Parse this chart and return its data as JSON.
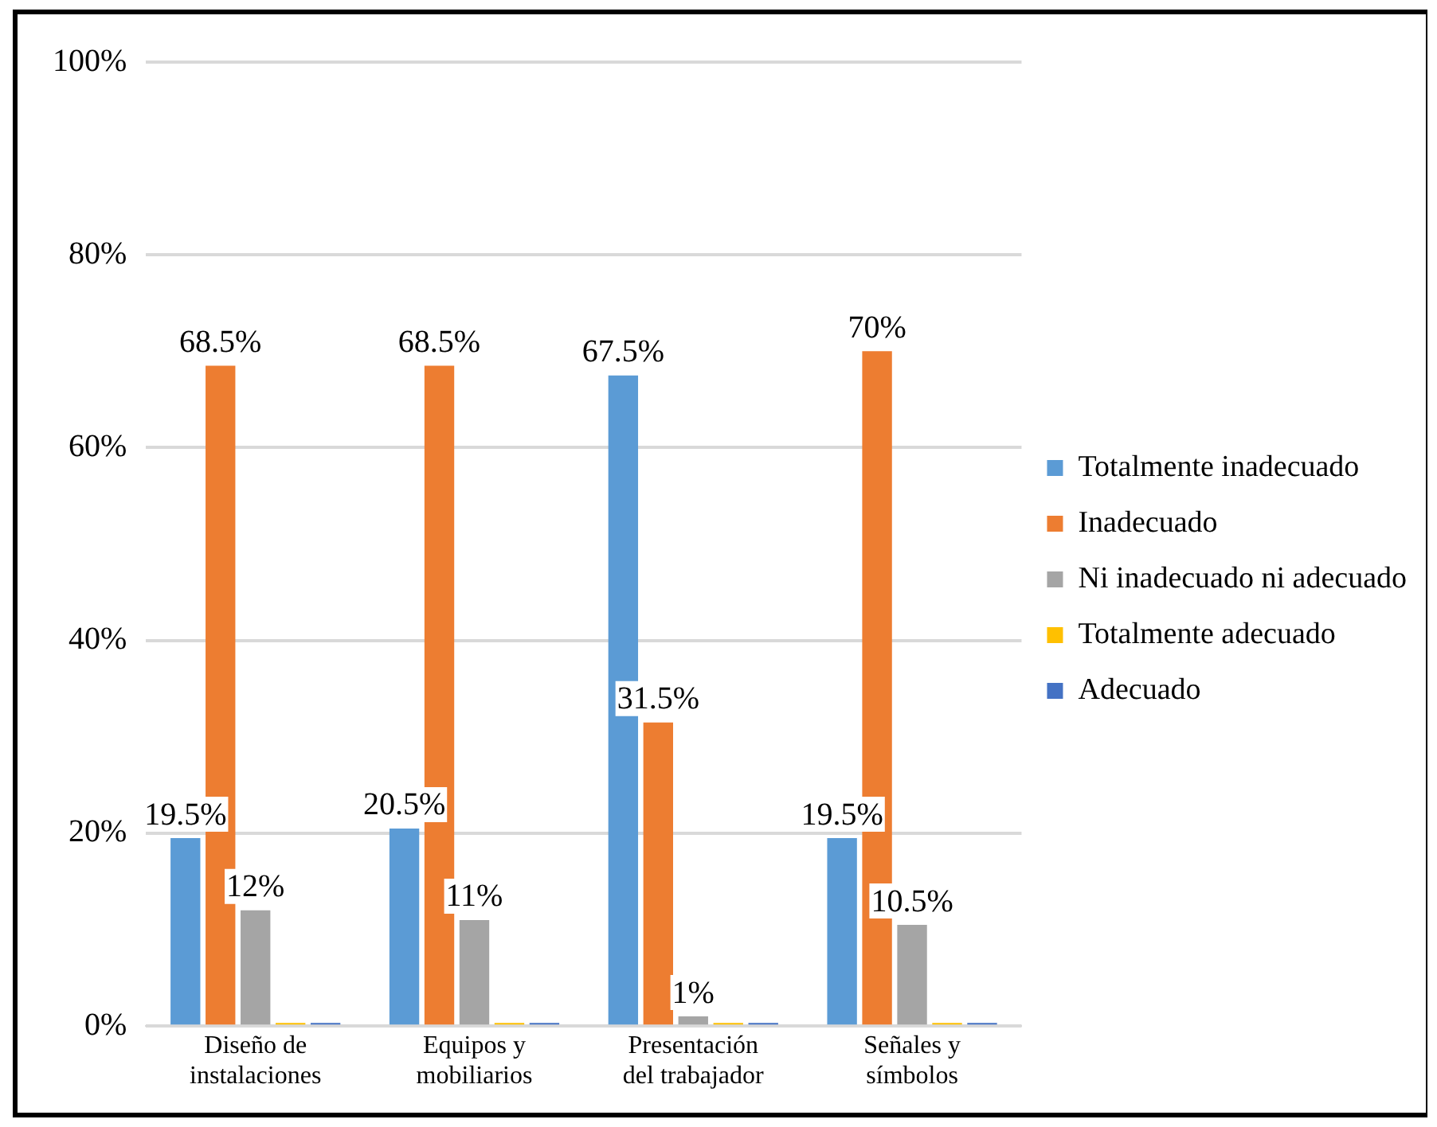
{
  "chart_data": {
    "type": "bar",
    "categories": [
      "Diseño de instalaciones",
      "Equipos y mobiliarios",
      "Presentación del trabajador",
      "Señales y símbolos"
    ],
    "series": [
      {
        "name": "Totalmente inadecuado",
        "color": "#5b9bd5",
        "values": [
          19.5,
          20.5,
          67.5,
          19.5
        ],
        "value_labels": [
          "19.5%",
          "20.5%",
          "67.5%",
          "19.5%"
        ]
      },
      {
        "name": "Inadecuado",
        "color": "#ed7d31",
        "values": [
          68.5,
          68.5,
          31.5,
          70
        ],
        "value_labels": [
          "68.5%",
          "68.5%",
          "31.5%",
          "70%"
        ]
      },
      {
        "name": "Ni inadecuado ni adecuado",
        "color": "#a5a5a5",
        "values": [
          12,
          11,
          1,
          10.5
        ],
        "value_labels": [
          "12%",
          "11%",
          "1%",
          "10.5%"
        ]
      },
      {
        "name": "Totalmente adecuado",
        "color": "#ffc000",
        "values": [
          0,
          0,
          0,
          0
        ],
        "value_labels": [
          null,
          null,
          null,
          null
        ]
      },
      {
        "name": "Adecuado",
        "color": "#4472c4",
        "values": [
          0,
          0,
          0,
          0
        ],
        "value_labels": [
          null,
          null,
          null,
          null
        ]
      }
    ],
    "ylim": [
      0,
      100
    ],
    "yticks": [
      {
        "value": 0,
        "label": "0%"
      },
      {
        "value": 20,
        "label": "20%"
      },
      {
        "value": 40,
        "label": "40%"
      },
      {
        "value": 60,
        "label": "60%"
      },
      {
        "value": 80,
        "label": "80%"
      },
      {
        "value": 100,
        "label": "100%"
      }
    ],
    "grid": "y",
    "legend": "right"
  }
}
